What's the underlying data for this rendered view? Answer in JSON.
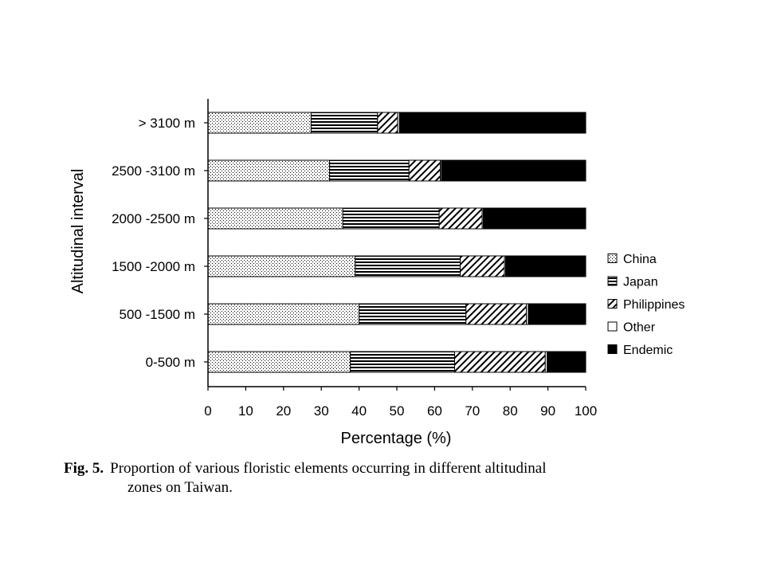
{
  "chart_data": {
    "type": "bar",
    "orientation": "horizontal",
    "stacked": true,
    "categories": [
      "> 3100 m",
      "2500 -3100 m",
      "2000 -2500 m",
      "1500 -2000 m",
      "500 -1500 m",
      "0-500 m"
    ],
    "series": [
      {
        "name": "China",
        "values": [
          27.3,
          32.2,
          35.7,
          39.0,
          40.0,
          37.7
        ],
        "pattern": "dots"
      },
      {
        "name": "Japan",
        "values": [
          17.6,
          21.0,
          25.5,
          27.8,
          28.3,
          27.6
        ],
        "pattern": "horizontal-lines"
      },
      {
        "name": "Philippines",
        "values": [
          5.3,
          8.3,
          11.4,
          11.7,
          16.0,
          24.0
        ],
        "pattern": "diagonal-lines"
      },
      {
        "name": "Other",
        "values": [
          0.5,
          0.3,
          0.3,
          0.3,
          0.5,
          0.5
        ],
        "pattern": "white"
      },
      {
        "name": "Endemic",
        "values": [
          49.3,
          38.2,
          27.1,
          21.2,
          15.2,
          10.2
        ],
        "pattern": "solid-black"
      }
    ],
    "xlabel": "Percentage (%)",
    "ylabel": "Altitudinal interval",
    "xlim": [
      0,
      100
    ],
    "xticks": [
      0,
      10,
      20,
      30,
      40,
      50,
      60,
      70,
      80,
      90,
      100
    ],
    "grid": false,
    "legend_position": "right"
  },
  "caption": {
    "label": "Fig. 5.",
    "text_line1": "Proportion of various floristic elements occurring in different altitudinal",
    "text_line2": "zones on Taiwan."
  }
}
